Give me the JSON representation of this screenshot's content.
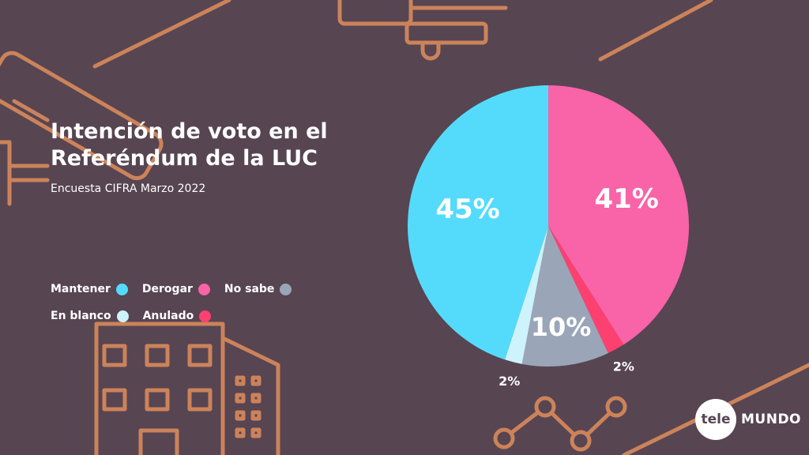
{
  "title_lines": [
    "Intención de voto en el",
    "Referéndum de la LUC"
  ],
  "subtitle": "Encuesta CIFRA Marzo 2022",
  "legend": [
    {
      "label": "Mantener",
      "color": "#54dbfc"
    },
    {
      "label": "Derogar",
      "color": "#f963a8"
    },
    {
      "label": "No sabe",
      "color": "#9aa6b8"
    },
    {
      "label": "En blanco",
      "color": "#cdf3fd"
    },
    {
      "label": "Anulado",
      "color": "#fc4070"
    }
  ],
  "chart_data": {
    "type": "pie",
    "title": "Intención de voto en el Referéndum de la LUC",
    "subtitle": "Encuesta CIFRA Marzo 2022",
    "slices": [
      {
        "label": "Derogar",
        "value": 41,
        "display": "41%",
        "color": "#f963a8"
      },
      {
        "label": "Anulado",
        "value": 2,
        "display": "2%",
        "color": "#fc4070"
      },
      {
        "label": "No sabe",
        "value": 10,
        "display": "10%",
        "color": "#9aa6b8"
      },
      {
        "label": "En blanco",
        "value": 2,
        "display": "2%",
        "color": "#cdf3fd"
      },
      {
        "label": "Mantener",
        "value": 45,
        "display": "45%",
        "color": "#54dbfc"
      }
    ],
    "start_angle": "12 o'clock",
    "direction": "clockwise",
    "legend_position": "left"
  },
  "logo": {
    "circle_text": "tele",
    "text": "MUNDO"
  },
  "accent_color": "#d98a5b"
}
